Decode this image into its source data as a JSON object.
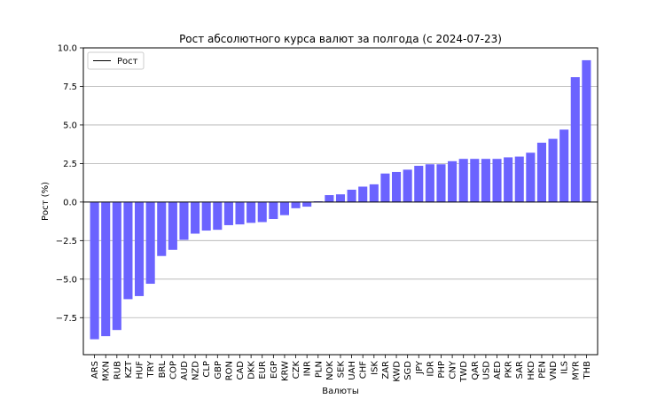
{
  "chart_data": {
    "type": "bar",
    "title": "Рост абсолютного курса валют за полгода (с 2024-07-23)",
    "xlabel": "Валюты",
    "ylabel": "Рост (%)",
    "ylim": [
      -9.9,
      10.0
    ],
    "yticks": [
      -7.5,
      -5.0,
      -2.5,
      0.0,
      2.5,
      5.0,
      7.5,
      10.0
    ],
    "ytick_labels": [
      "−7.5",
      "−5.0",
      "−2.5",
      "0.0",
      "2.5",
      "5.0",
      "7.5",
      "10.0"
    ],
    "grid": "horizontal",
    "legend": {
      "entries": [
        "Рост"
      ],
      "position": "top-left"
    },
    "bar_color": "#6b63ff",
    "categories": [
      "ARS",
      "MXN",
      "RUB",
      "KZT",
      "HUF",
      "TRY",
      "BRL",
      "COP",
      "AUD",
      "NZD",
      "CLP",
      "GBP",
      "RON",
      "CAD",
      "DKK",
      "EUR",
      "EGP",
      "KRW",
      "CZK",
      "INR",
      "PLN",
      "NOK",
      "SEK",
      "UAH",
      "CHF",
      "ISK",
      "ZAR",
      "KWD",
      "SGD",
      "JPY",
      "IDR",
      "PHP",
      "CNY",
      "TWD",
      "QAR",
      "USD",
      "AED",
      "PKR",
      "SAR",
      "HKD",
      "PEN",
      "VND",
      "ILS",
      "MYR",
      "THB"
    ],
    "values": [
      -8.9,
      -8.7,
      -8.3,
      -6.3,
      -6.1,
      -5.3,
      -3.5,
      -3.1,
      -2.45,
      -2.05,
      -1.85,
      -1.8,
      -1.5,
      -1.45,
      -1.35,
      -1.3,
      -1.1,
      -0.85,
      -0.4,
      -0.3,
      0.05,
      0.45,
      0.5,
      0.8,
      1.0,
      1.15,
      1.85,
      1.95,
      2.1,
      2.35,
      2.45,
      2.45,
      2.65,
      2.8,
      2.8,
      2.8,
      2.8,
      2.9,
      2.95,
      3.2,
      3.85,
      4.1,
      4.7,
      8.1,
      9.2
    ]
  }
}
